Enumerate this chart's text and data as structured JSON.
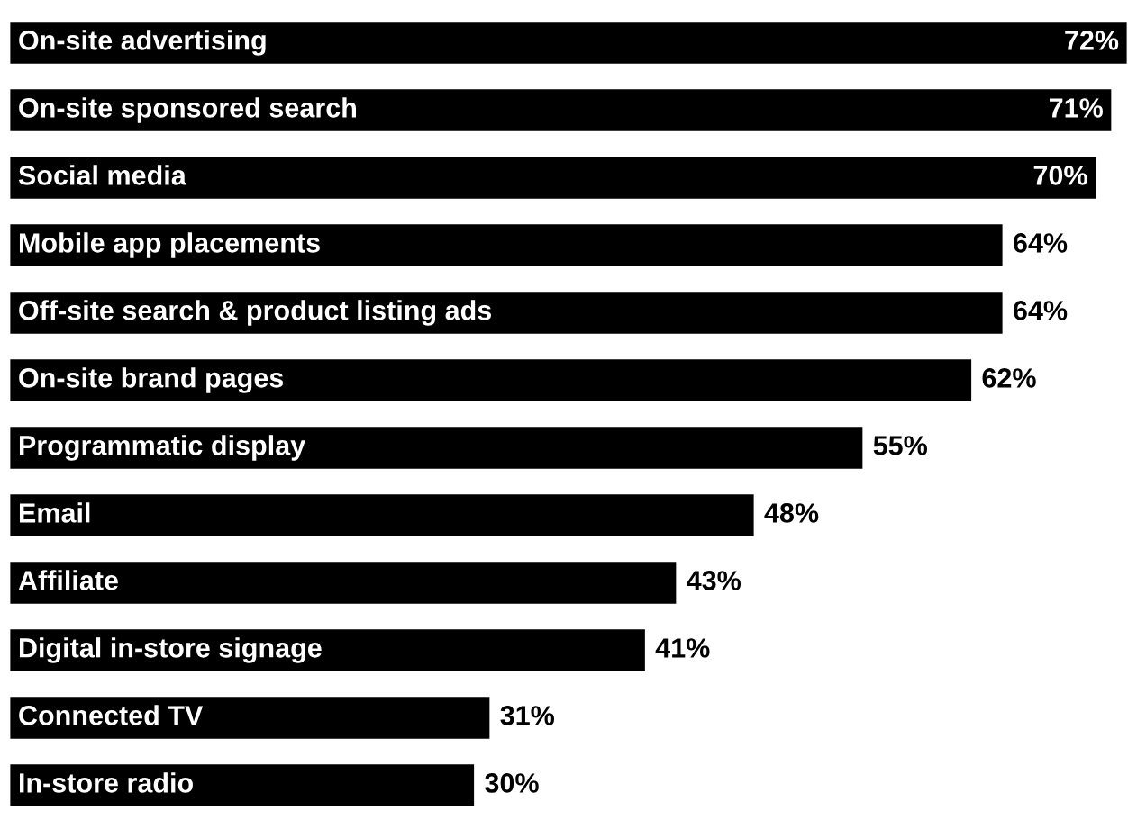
{
  "chart_data": {
    "type": "bar",
    "orientation": "horizontal",
    "color": "#000000",
    "categories": [
      "On-site advertising",
      "On-site sponsored search",
      "Social media",
      "Mobile app placements",
      "Off-site search & product listing ads",
      "On-site brand pages",
      "Programmatic display",
      "Email",
      "Affiliate",
      "Digital in-store signage",
      "Connected TV",
      "In-store radio"
    ],
    "values": [
      72,
      71,
      70,
      64,
      64,
      62,
      55,
      48,
      43,
      41,
      31,
      30
    ],
    "value_labels": [
      "72%",
      "71%",
      "70%",
      "64%",
      "64%",
      "62%",
      "55%",
      "48%",
      "43%",
      "41%",
      "31%",
      "30%"
    ]
  }
}
